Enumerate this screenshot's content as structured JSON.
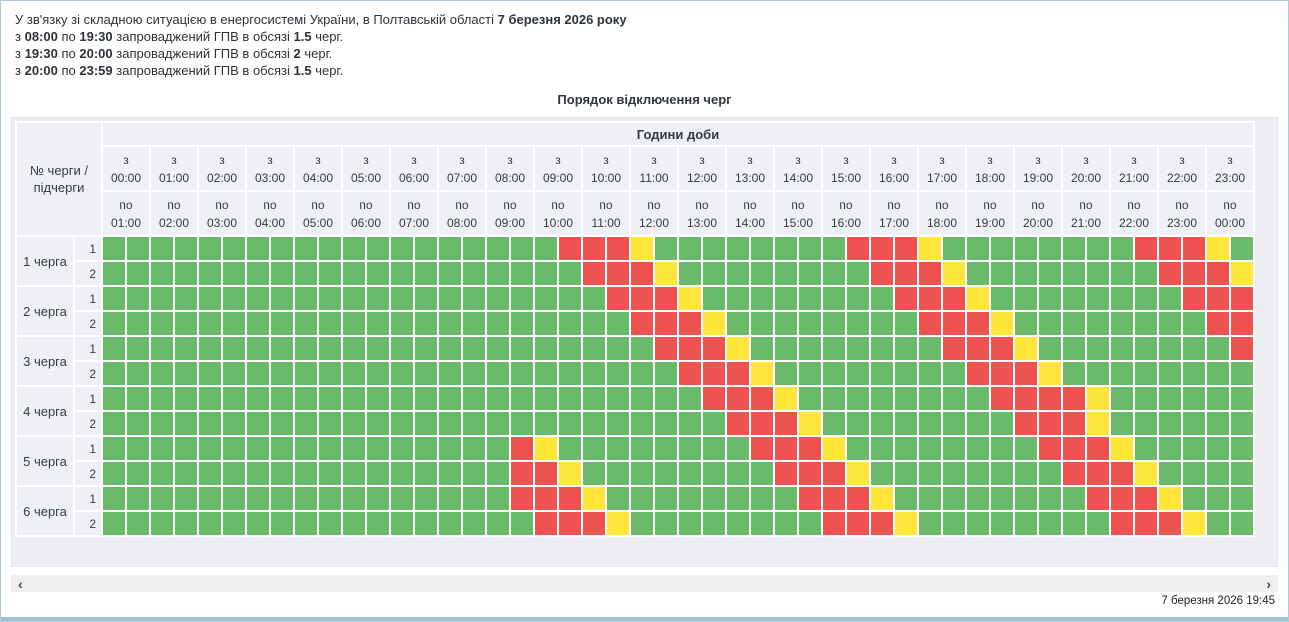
{
  "notice": {
    "intro_text": "У зв'язку зі складною ситуацією в енергосистемі України, в Полтавській області",
    "intro_bold": "7 березня 2026 року",
    "word_from": "з",
    "word_to": "по",
    "word_mid": "запроваджений ГПВ в обсязі",
    "word_end": "черг.",
    "periods": [
      {
        "from": "08:00",
        "to": "19:30",
        "amount": "1.5"
      },
      {
        "from": "19:30",
        "to": "20:00",
        "amount": "2"
      },
      {
        "from": "20:00",
        "to": "23:59",
        "amount": "1.5"
      }
    ]
  },
  "table": {
    "title": "Порядок відключення черг",
    "corner_header_line1": "№ черги /",
    "corner_header_line2": "підчерги",
    "hours_header": "Години доби",
    "hour_from_label": "з",
    "hour_to_label": "по",
    "hours": [
      {
        "from": "00:00",
        "to": "01:00"
      },
      {
        "from": "01:00",
        "to": "02:00"
      },
      {
        "from": "02:00",
        "to": "03:00"
      },
      {
        "from": "03:00",
        "to": "04:00"
      },
      {
        "from": "04:00",
        "to": "05:00"
      },
      {
        "from": "05:00",
        "to": "06:00"
      },
      {
        "from": "06:00",
        "to": "07:00"
      },
      {
        "from": "07:00",
        "to": "08:00"
      },
      {
        "from": "08:00",
        "to": "09:00"
      },
      {
        "from": "09:00",
        "to": "10:00"
      },
      {
        "from": "10:00",
        "to": "11:00"
      },
      {
        "from": "11:00",
        "to": "12:00"
      },
      {
        "from": "12:00",
        "to": "13:00"
      },
      {
        "from": "13:00",
        "to": "14:00"
      },
      {
        "from": "14:00",
        "to": "15:00"
      },
      {
        "from": "15:00",
        "to": "16:00"
      },
      {
        "from": "16:00",
        "to": "17:00"
      },
      {
        "from": "17:00",
        "to": "18:00"
      },
      {
        "from": "18:00",
        "to": "19:00"
      },
      {
        "from": "19:00",
        "to": "20:00"
      },
      {
        "from": "20:00",
        "to": "21:00"
      },
      {
        "from": "21:00",
        "to": "22:00"
      },
      {
        "from": "22:00",
        "to": "23:00"
      },
      {
        "from": "23:00",
        "to": "00:00"
      }
    ],
    "slot_minutes": 30,
    "legend_colors": {
      "power_on": "#69ba69",
      "power_off": "#ee5352",
      "possible_off": "#fee63a"
    },
    "cell_codes": {
      "g": "power_on",
      "r": "power_off",
      "y": "possible_off"
    },
    "queues": [
      {
        "name": "1 черга",
        "subqueues": [
          {
            "label": "1",
            "cells": "gggggggggggggggggggrrryggggggggrrryggggggggrrryg"
          },
          {
            "label": "2",
            "cells": "ggggggggggggggggggggrrryggggggggrrryggggggggrrry"
          }
        ]
      },
      {
        "name": "2 черга",
        "subqueues": [
          {
            "label": "1",
            "cells": "gggggggggggggggggggggrrryggggggggrrryggggggggrrr"
          },
          {
            "label": "2",
            "cells": "ggggggggggggggggggggggrrryggggggggrrryggggggggrr"
          }
        ]
      },
      {
        "name": "3 черга",
        "subqueues": [
          {
            "label": "1",
            "cells": "gggggggggggggggggggggggrrryggggggggrrryggggggggr"
          },
          {
            "label": "2",
            "cells": "ggggggggggggggggggggggggrrryggggggggrrrygggggggg"
          }
        ]
      },
      {
        "name": "4 черга",
        "subqueues": [
          {
            "label": "1",
            "cells": "gggggggggggggggggggggggggrrryggggggggrrrrygggggg"
          },
          {
            "label": "2",
            "cells": "ggggggggggggggggggggggggggrrryggggggggrrrygggggg"
          }
        ]
      },
      {
        "name": "5 черга",
        "subqueues": [
          {
            "label": "1",
            "cells": "gggggggggggggggggryggggggggrrryggggggggrrryggggg"
          },
          {
            "label": "2",
            "cells": "gggggggggggggggggrryggggggggrrryggggggggrrrygggg"
          }
        ]
      },
      {
        "name": "6 черга",
        "subqueues": [
          {
            "label": "1",
            "cells": "gggggggggggggggggrrryggggggggrrryggggggggrrryggg"
          },
          {
            "label": "2",
            "cells": "ggggggggggggggggggrrryggggggggrrryggggggggrrrygg"
          }
        ]
      }
    ]
  },
  "footer": {
    "scroll_left": "‹",
    "scroll_right": "›",
    "timestamp": "7 березня 2026 19:45"
  }
}
